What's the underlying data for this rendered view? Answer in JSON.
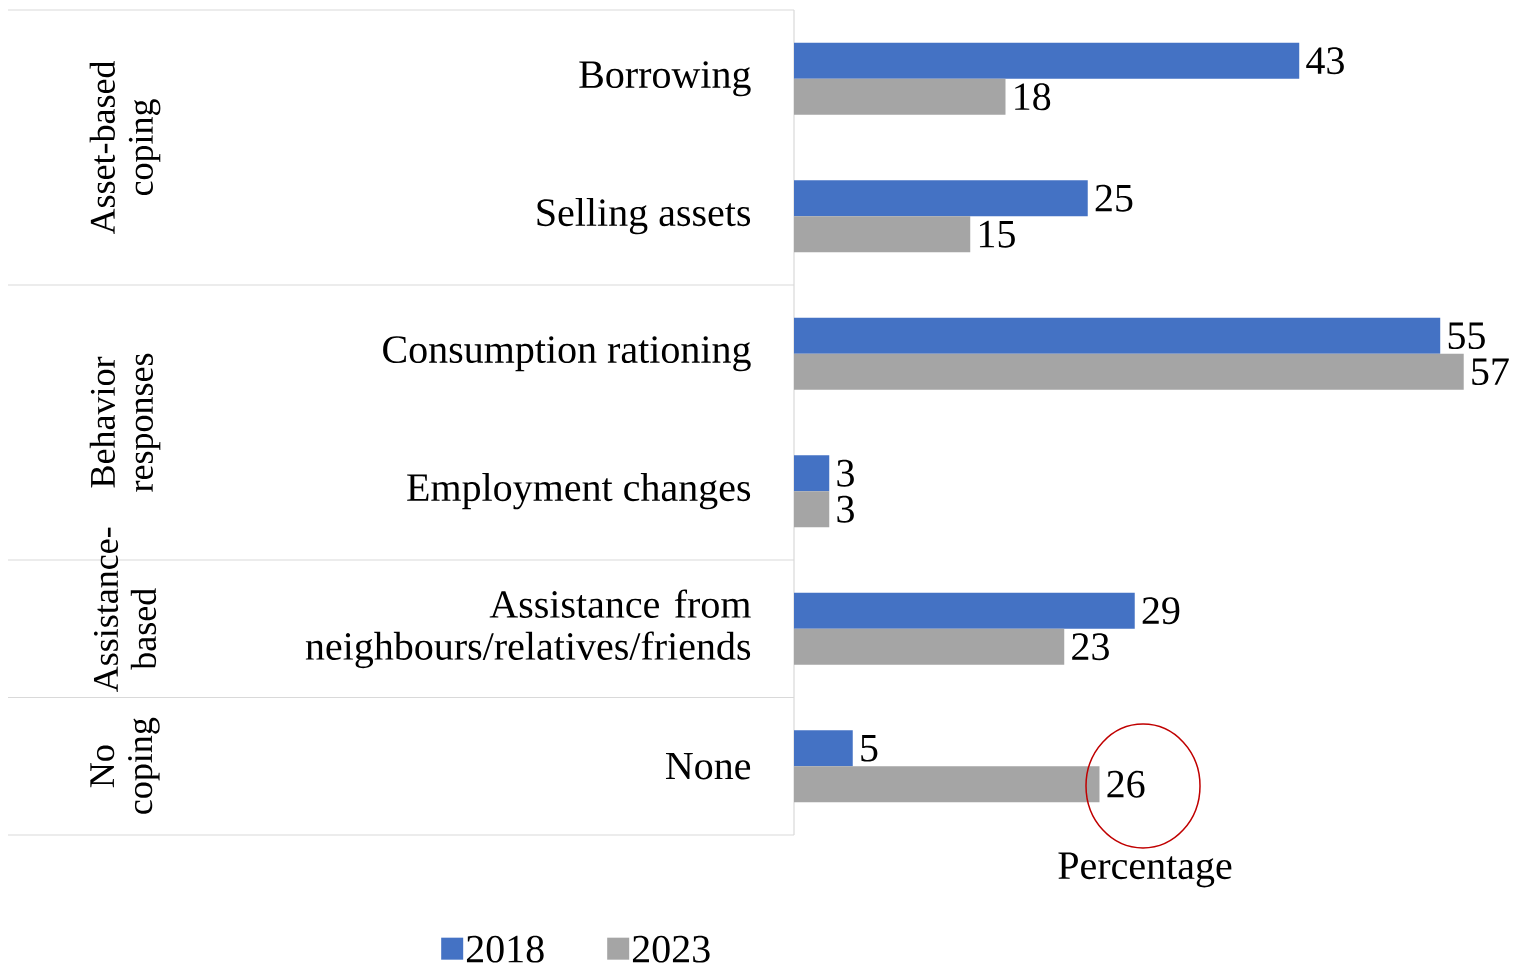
{
  "chart_data": {
    "type": "bar",
    "orientation": "horizontal",
    "xlabel": "Percentage",
    "categories": [
      "Borrowing",
      "Selling assets",
      "Consumption rationing",
      "Employment changes",
      "Assistance from neighbours/relatives/friends",
      "None"
    ],
    "series": [
      {
        "name": "2018",
        "color": "#4472c4",
        "values": [
          43,
          25,
          55,
          3,
          29,
          5
        ]
      },
      {
        "name": "2023",
        "color": "#a5a5a5",
        "values": [
          18,
          15,
          57,
          3,
          23,
          26
        ]
      }
    ],
    "annotations": [
      "Asset-based coping",
      "Behavior responses",
      "Assistance-based",
      "No coping"
    ],
    "data_labels": true,
    "legend": "bottom"
  }
}
